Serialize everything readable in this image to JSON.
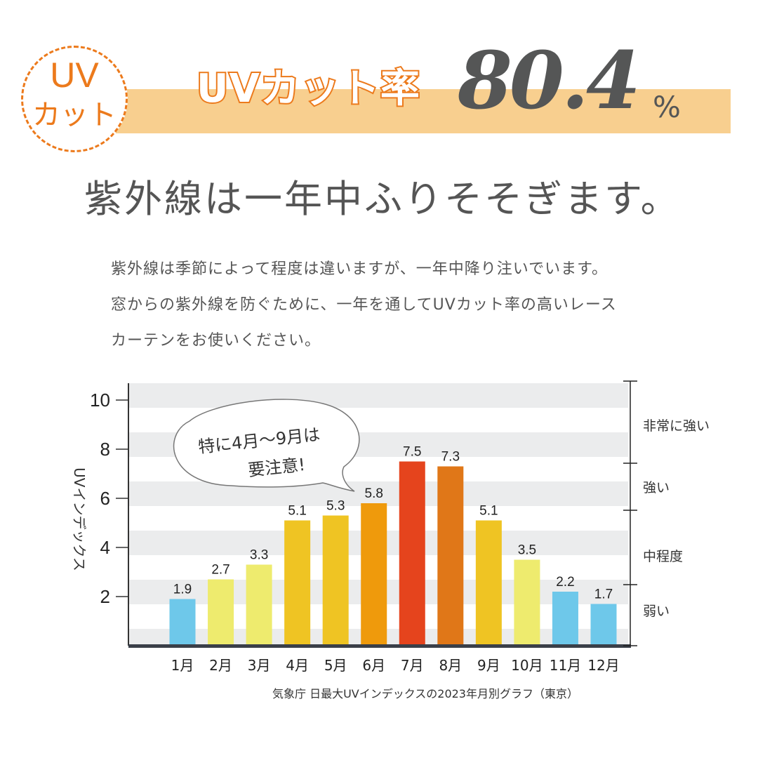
{
  "header": {
    "badge_line1": "UV",
    "badge_line2": "カット",
    "headline": "UVカット率",
    "rate_value": "80.4",
    "rate_unit": "%"
  },
  "subtitle": "紫外線は一年中ふりそそぎます。",
  "body_lines": [
    "紫外線は季節によって程度は違いますが、一年中降り注いでいます。",
    "窓からの紫外線を防ぐために、一年を通してUVカット率の高いレース",
    "カーテンをお使いください。"
  ],
  "chart_data": {
    "type": "bar",
    "ylabel": "UVインデックス",
    "ylim": [
      0,
      10.7
    ],
    "yticks": [
      2,
      4,
      6,
      8,
      10
    ],
    "categories": [
      "1月",
      "2月",
      "3月",
      "4月",
      "5月",
      "6月",
      "7月",
      "8月",
      "9月",
      "10月",
      "11月",
      "12月"
    ],
    "values": [
      1.9,
      2.7,
      3.3,
      5.1,
      5.3,
      5.8,
      7.5,
      7.3,
      5.1,
      3.5,
      2.2,
      1.7
    ],
    "bar_colors": [
      "#6ec8ea",
      "#eeeb6e",
      "#eeeb6e",
      "#efc423",
      "#efc423",
      "#ef9a0c",
      "#e5441d",
      "#e07718",
      "#efc423",
      "#eeeb6e",
      "#6ec8ea",
      "#6ec8ea"
    ],
    "grid": "horizontal stripes",
    "levels": [
      {
        "label": "弱い",
        "range": [
          0,
          2.5
        ]
      },
      {
        "label": "中程度",
        "range": [
          2.5,
          5.5
        ]
      },
      {
        "label": "強い",
        "range": [
          5.5,
          7.5
        ]
      },
      {
        "label": "非常に強い",
        "range": [
          7.5,
          10.8
        ]
      }
    ],
    "callout": [
      "特に4月〜9月は",
      "要注意!"
    ],
    "source": "気象庁 日最大UVインデックスの2023年月別グラフ（東京）"
  }
}
